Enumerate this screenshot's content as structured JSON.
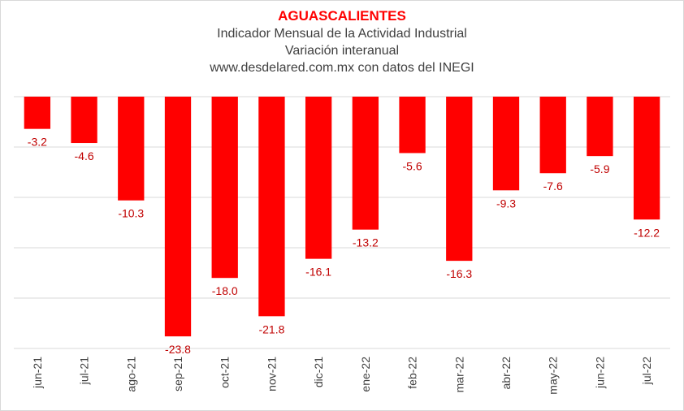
{
  "chart_data": {
    "type": "bar",
    "title": "AGUASCALIENTES",
    "subtitles": [
      "Indicador Mensual de la Actividad Industrial",
      "Variación interanual",
      "www.desdelared.com.mx con datos del INEGI"
    ],
    "categories": [
      "jun-21",
      "jul-21",
      "ago-21",
      "sep-21",
      "oct-21",
      "nov-21",
      "dic-21",
      "ene-22",
      "feb-22",
      "mar-22",
      "abr-22",
      "may-22",
      "jun-22",
      "jul-22"
    ],
    "values": [
      -3.2,
      -4.6,
      -10.3,
      -23.8,
      -18.0,
      -21.8,
      -16.1,
      -13.2,
      -5.6,
      -16.3,
      -9.3,
      -7.6,
      -5.9,
      -12.2
    ],
    "data_labels": [
      "-3.2",
      "-4.6",
      "-10.3",
      "-23.8",
      "-18.0",
      "-21.8",
      "-16.1",
      "-13.2",
      "-5.6",
      "-16.3",
      "-9.3",
      "-7.6",
      "-5.9",
      "-12.2"
    ],
    "ylim": [
      -25,
      0
    ],
    "y_gridlines": [
      0,
      -5,
      -10,
      -15,
      -20,
      -25
    ],
    "grid": true,
    "legend": "none",
    "bar_color": "#ff0000",
    "label_color": "#c00000",
    "grid_color": "#d9d9d9",
    "xlabel": "",
    "ylabel": ""
  }
}
